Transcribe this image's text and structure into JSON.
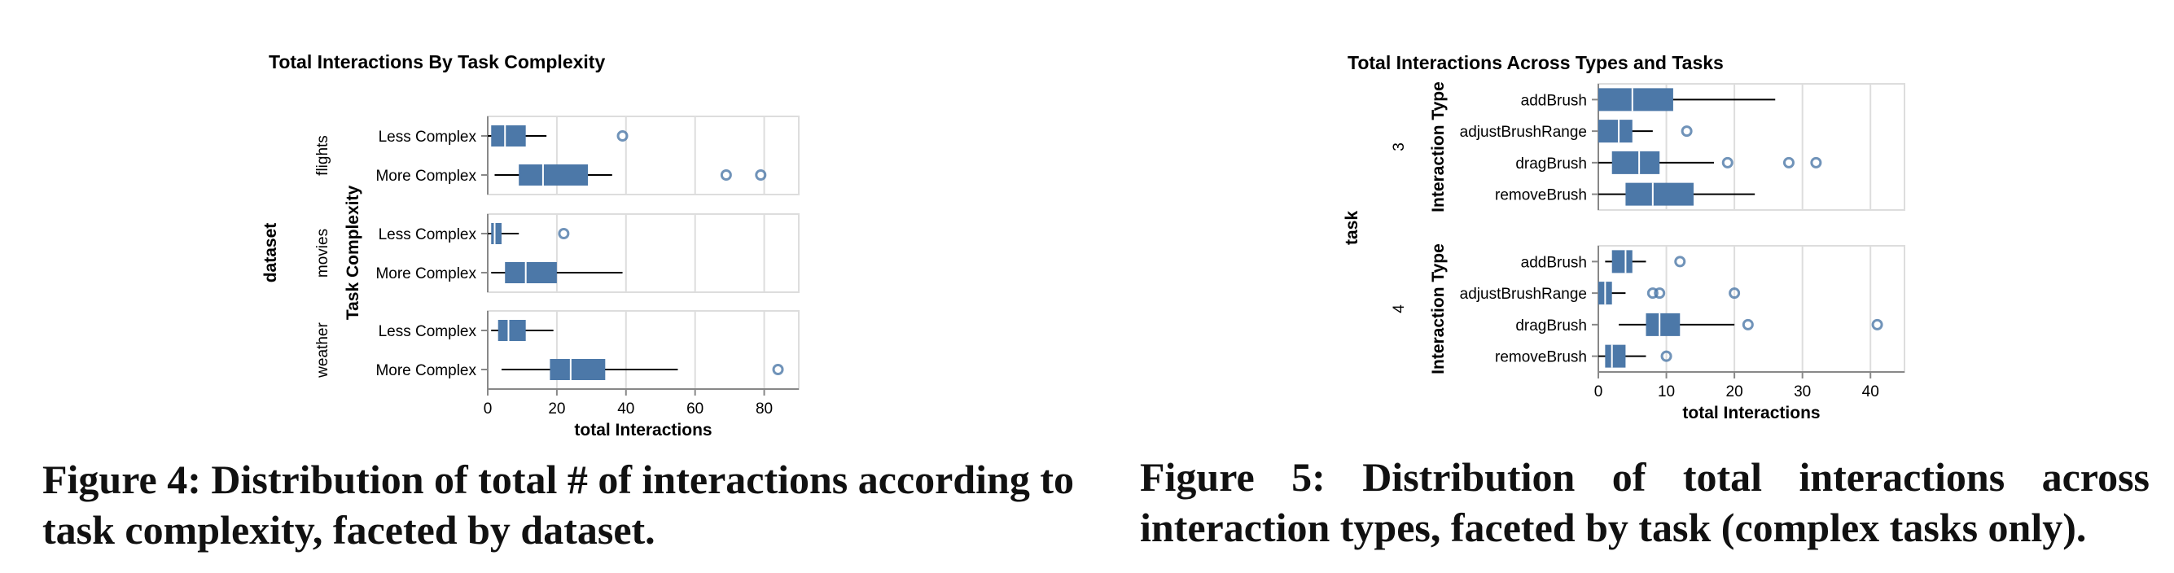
{
  "colors": {
    "box": "#4c78a8",
    "median": "#ffffff",
    "grid": "#dddddd",
    "axis": "#888888",
    "outlier": "#4c78a8",
    "text": "#000000"
  },
  "captions": {
    "fig4": "Figure 4: Distribution of total # of interactions according to task complexity, faceted by dataset.",
    "fig5": "Figure 5: Distribution of total interactions across interaction types, faceted by task (complex tasks only)."
  },
  "chart_data": [
    {
      "type": "boxplot",
      "orientation": "horizontal",
      "title": "Total Interactions By Task Complexity",
      "xlabel": "total Interactions",
      "ylabel": "Task Complexity",
      "facet_label": "dataset",
      "xlim": [
        0,
        90
      ],
      "xticks": [
        0,
        20,
        40,
        60,
        80
      ],
      "grid": true,
      "facets": [
        {
          "name": "flights",
          "rows": [
            {
              "category": "Less Complex",
              "min": 0,
              "q1": 1,
              "median": 5,
              "q3": 11,
              "max": 17,
              "outliers": [
                39
              ]
            },
            {
              "category": "More Complex",
              "min": 2,
              "q1": 9,
              "median": 16,
              "q3": 29,
              "max": 36,
              "outliers": [
                69,
                79
              ]
            }
          ]
        },
        {
          "name": "movies",
          "rows": [
            {
              "category": "Less Complex",
              "min": 0,
              "q1": 1,
              "median": 2,
              "q3": 4,
              "max": 9,
              "outliers": [
                22
              ]
            },
            {
              "category": "More Complex",
              "min": 1,
              "q1": 5,
              "median": 11,
              "q3": 20,
              "max": 39,
              "outliers": []
            }
          ]
        },
        {
          "name": "weather",
          "rows": [
            {
              "category": "Less Complex",
              "min": 1,
              "q1": 3,
              "median": 6,
              "q3": 11,
              "max": 19,
              "outliers": []
            },
            {
              "category": "More Complex",
              "min": 4,
              "q1": 18,
              "median": 24,
              "q3": 34,
              "max": 55,
              "outliers": [
                84
              ]
            }
          ]
        }
      ]
    },
    {
      "type": "boxplot",
      "orientation": "horizontal",
      "title": "Total Interactions Across Types and Tasks",
      "xlabel": "total Interactions",
      "ylabel": "Interaction Type",
      "facet_label": "task",
      "xlim": [
        0,
        45
      ],
      "xticks": [
        0,
        10,
        20,
        30,
        40
      ],
      "grid": true,
      "facets": [
        {
          "name": "3",
          "rows": [
            {
              "category": "addBrush",
              "min": 0,
              "q1": 0,
              "median": 5,
              "q3": 11,
              "max": 26,
              "outliers": []
            },
            {
              "category": "adjustBrushRange",
              "min": 0,
              "q1": 0,
              "median": 3,
              "q3": 5,
              "max": 8,
              "outliers": [
                13
              ]
            },
            {
              "category": "dragBrush",
              "min": 0,
              "q1": 2,
              "median": 6,
              "q3": 9,
              "max": 17,
              "outliers": [
                19,
                28,
                32
              ]
            },
            {
              "category": "removeBrush",
              "min": 0,
              "q1": 4,
              "median": 8,
              "q3": 14,
              "max": 23,
              "outliers": []
            }
          ]
        },
        {
          "name": "4",
          "rows": [
            {
              "category": "addBrush",
              "min": 1,
              "q1": 2,
              "median": 4,
              "q3": 5,
              "max": 7,
              "outliers": [
                12
              ]
            },
            {
              "category": "adjustBrushRange",
              "min": 0,
              "q1": 0,
              "median": 1,
              "q3": 2,
              "max": 4,
              "outliers": [
                8,
                9,
                20
              ]
            },
            {
              "category": "dragBrush",
              "min": 3,
              "q1": 7,
              "median": 9,
              "q3": 12,
              "max": 20,
              "outliers": [
                22,
                41
              ]
            },
            {
              "category": "removeBrush",
              "min": 0,
              "q1": 1,
              "median": 2,
              "q3": 4,
              "max": 7,
              "outliers": [
                10
              ]
            }
          ]
        }
      ]
    }
  ]
}
